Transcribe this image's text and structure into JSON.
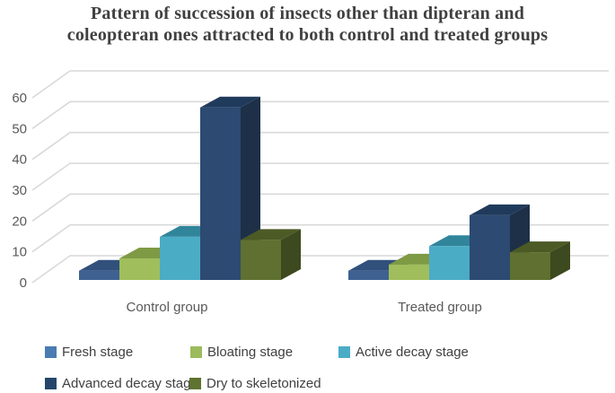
{
  "title": {
    "line1": "Pattern of succession of insects other than dipteran and",
    "line2": "coleopteran ones attracted to both control and treated groups"
  },
  "chart_data": {
    "type": "bar",
    "projection": "3d-column",
    "categories": [
      "Control group",
      "Treated group"
    ],
    "series": [
      {
        "name": "Fresh stage",
        "values": [
          3,
          3
        ],
        "color_front": "#3E6191",
        "color_top": "#31507C",
        "color_side": "#27405F",
        "color_legend": "#4A7CB2"
      },
      {
        "name": "Bloating stage",
        "values": [
          7,
          5
        ],
        "color_front": "#A0BE5C",
        "color_top": "#7E9A44",
        "color_side": "#5F7A33",
        "color_legend": "#9CBB5D"
      },
      {
        "name": "Active decay stage",
        "values": [
          14,
          11
        ],
        "color_front": "#4BACC6",
        "color_top": "#31859B",
        "color_side": "#2C7689",
        "color_legend": "#4BACC6"
      },
      {
        "name": "Advanced decay stage",
        "values": [
          56,
          21
        ],
        "color_front": "#2C4A72",
        "color_top": "#203A5C",
        "color_side": "#1D3048",
        "color_legend": "#24466B"
      },
      {
        "name": "Dry to skeletonized",
        "values": [
          13,
          9
        ],
        "color_front": "#5F7030",
        "color_top": "#4C5A26",
        "color_side": "#3D491E",
        "color_legend": "#5E7330"
      }
    ],
    "y_axis": {
      "min": 0,
      "max": 60,
      "ticks": [
        0,
        10,
        20,
        30,
        40,
        50,
        60
      ]
    },
    "grid": true,
    "legend_position": "bottom"
  },
  "colors": {
    "background": "#FFFFFF",
    "gridline": "#D9D9D9",
    "axis_text": "#595959",
    "legend_text": "#404040",
    "title_text": "#404040"
  }
}
